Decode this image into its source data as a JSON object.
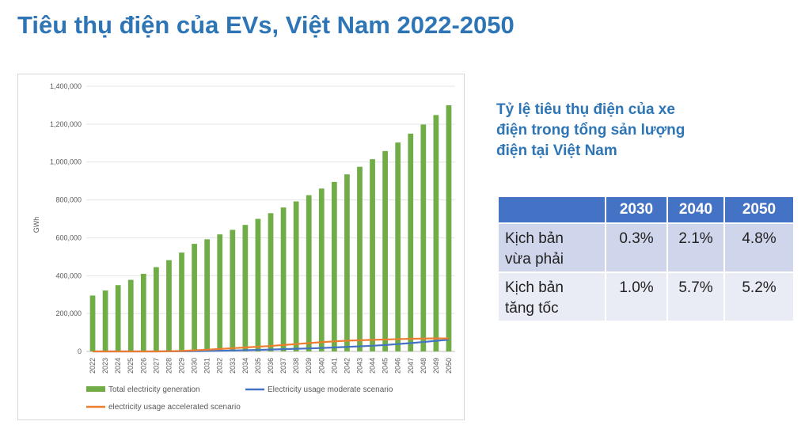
{
  "page": {
    "title": "Tiêu thụ điện của EVs, Việt Nam 2022-2050"
  },
  "side": {
    "heading_lines": [
      "Tỷ lệ tiêu thụ điện của xe",
      "điện trong tổng sản lượng",
      "điện tại Việt Nam"
    ]
  },
  "table": {
    "columns": [
      "",
      "2030",
      "2040",
      "2050"
    ],
    "rows": [
      {
        "label_lines": [
          "Kịch bản",
          "vừa phải"
        ],
        "values": [
          "0.3%",
          "2.1%",
          "4.8%"
        ]
      },
      {
        "label_lines": [
          "Kịch bản",
          "tăng tốc"
        ],
        "values": [
          "1.0%",
          "5.7%",
          "5.2%"
        ]
      }
    ]
  },
  "chart_data": {
    "type": "bar",
    "title": "",
    "xlabel": "",
    "ylabel": "GWh",
    "ylim": [
      0,
      1400000
    ],
    "yticks": [
      "0",
      "200,000",
      "400,000",
      "600,000",
      "800,000",
      "1,000,000",
      "1,200,000",
      "1,400,000"
    ],
    "grid": true,
    "legend_position": "bottom",
    "categories": [
      "2022",
      "2023",
      "2024",
      "2025",
      "2026",
      "2027",
      "2028",
      "2029",
      "2030",
      "2031",
      "2032",
      "2033",
      "2034",
      "2035",
      "2036",
      "2037",
      "2038",
      "2039",
      "2040",
      "2041",
      "2042",
      "2043",
      "2044",
      "2045",
      "2046",
      "2047",
      "2048",
      "2049",
      "2050"
    ],
    "series": [
      {
        "name": "Total electricity generation",
        "type": "bar",
        "color": "#70AD47",
        "values": [
          295000,
          322000,
          350000,
          378000,
          410000,
          445000,
          482000,
          522000,
          568000,
          592000,
          618000,
          642000,
          668000,
          700000,
          730000,
          760000,
          792000,
          825000,
          860000,
          895000,
          935000,
          975000,
          1015000,
          1058000,
          1103000,
          1150000,
          1198000,
          1248000,
          1300000
        ]
      },
      {
        "name": "Electricity usage moderate scenario",
        "type": "line",
        "color": "#4472C4",
        "values": [
          0,
          0,
          0,
          0,
          0,
          0,
          500,
          1000,
          1700,
          2500,
          3500,
          5000,
          6500,
          8000,
          10000,
          12000,
          14000,
          16000,
          18000,
          21000,
          24000,
          27000,
          30000,
          34000,
          39000,
          44000,
          50000,
          56000,
          62000
        ]
      },
      {
        "name": "electricity usage accelerated scenario",
        "type": "line",
        "color": "#ED7D31",
        "values": [
          0,
          0,
          0,
          0,
          0,
          0,
          1000,
          2500,
          5700,
          9000,
          13000,
          17000,
          21000,
          25000,
          29000,
          34000,
          39000,
          44000,
          49000,
          53000,
          57000,
          59000,
          61000,
          63000,
          65000,
          67000,
          68000,
          69000,
          68000
        ]
      }
    ]
  }
}
